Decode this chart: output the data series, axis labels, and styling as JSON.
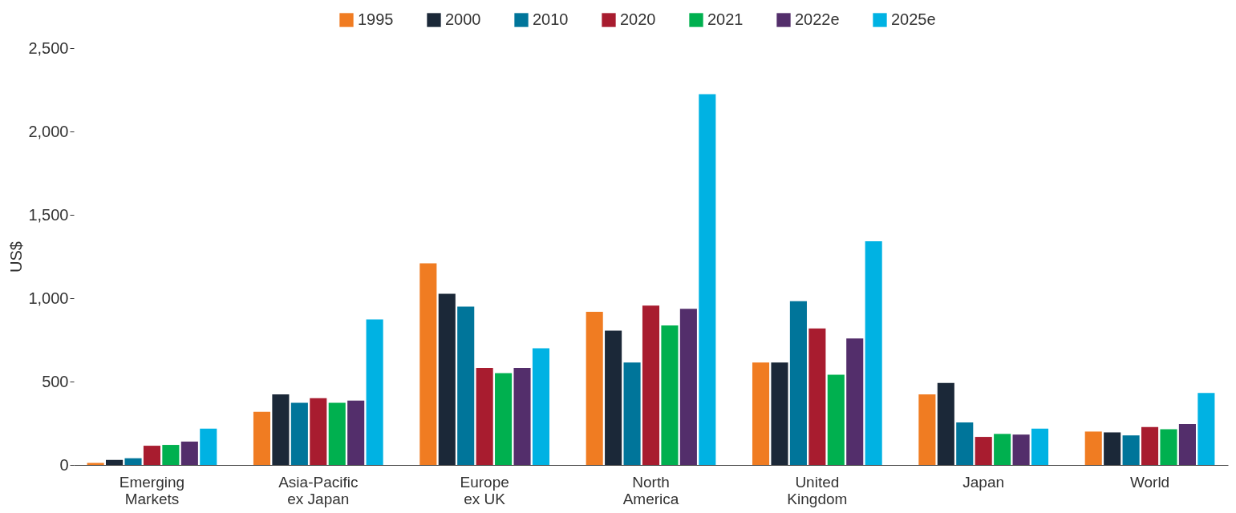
{
  "chart_data": {
    "type": "bar",
    "ylabel": "US$",
    "categories": [
      "Emerging Markets",
      "Asia-Pacific ex Japan",
      "Europe ex UK",
      "North America",
      "United Kingdom",
      "Japan",
      "World"
    ],
    "series": [
      {
        "name": "1995",
        "color": "#f07c22",
        "values": [
          12,
          318,
          1209,
          918,
          614,
          423,
          200
        ]
      },
      {
        "name": "2000",
        "color": "#1b2838",
        "values": [
          30,
          423,
          1027,
          805,
          614,
          491,
          195
        ]
      },
      {
        "name": "2010",
        "color": "#00759a",
        "values": [
          40,
          373,
          950,
          614,
          982,
          255,
          177
        ]
      },
      {
        "name": "2020",
        "color": "#a81c2f",
        "values": [
          115,
          400,
          582,
          955,
          818,
          168,
          227
        ]
      },
      {
        "name": "2021",
        "color": "#00b04f",
        "values": [
          120,
          373,
          550,
          836,
          541,
          186,
          214
        ]
      },
      {
        "name": "2022e",
        "color": "#532e6b",
        "values": [
          140,
          386,
          582,
          936,
          759,
          182,
          245
        ]
      },
      {
        "name": "2025e",
        "color": "#00b2e3",
        "values": [
          218,
          873,
          700,
          2223,
          1341,
          218,
          432
        ]
      }
    ],
    "ylim": [
      0,
      2500
    ],
    "yticks": [
      0,
      500,
      {
        "value": 1000,
        "label": "1,000"
      },
      {
        "value": 1500,
        "label": "1,500"
      },
      {
        "value": 2000,
        "label": "2,000"
      },
      {
        "value": 2500,
        "label": "2,500"
      }
    ],
    "grid": false,
    "legend": "top"
  }
}
